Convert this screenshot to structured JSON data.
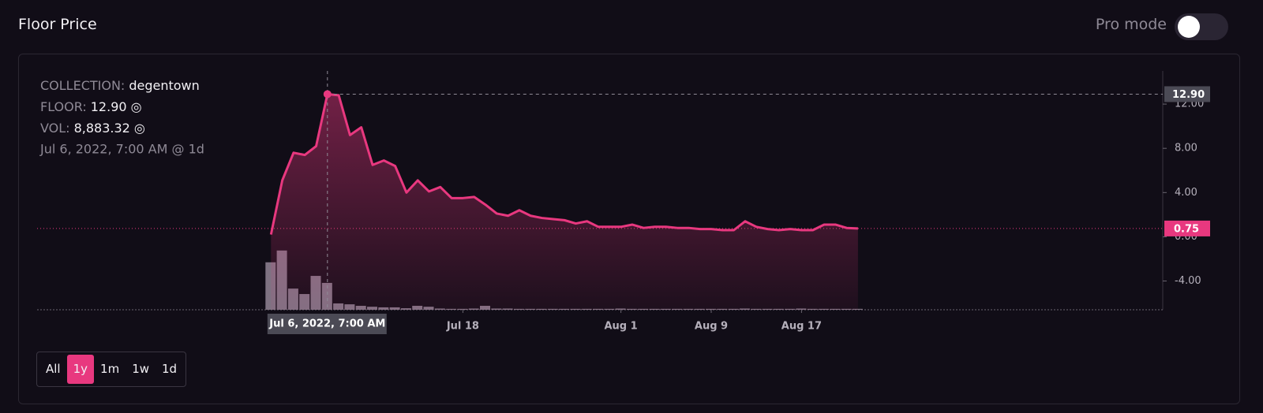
{
  "header": {
    "title": "Floor Price",
    "pro_mode_label": "Pro mode"
  },
  "info": {
    "collection_label": "COLLECTION:",
    "collection": "degentown",
    "floor_label": "FLOOR:",
    "floor": "12.90 ◎",
    "vol_label": "VOL:",
    "vol": "8,883.32 ◎",
    "time": "Jul 6, 2022, 7:00 AM @ 1d"
  },
  "range_buttons": [
    "All",
    "1y",
    "1m",
    "1w",
    "1d"
  ],
  "active_range": "1y",
  "chart_data": {
    "type": "line",
    "x": [
      "2022-07-01",
      "2022-07-02",
      "2022-07-03",
      "2022-07-04",
      "2022-07-05",
      "2022-07-06",
      "2022-07-07",
      "2022-07-08",
      "2022-07-09",
      "2022-07-10",
      "2022-07-11",
      "2022-07-12",
      "2022-07-13",
      "2022-07-14",
      "2022-07-15",
      "2022-07-16",
      "2022-07-17",
      "2022-07-18",
      "2022-07-19",
      "2022-07-20",
      "2022-07-21",
      "2022-07-22",
      "2022-07-23",
      "2022-07-24",
      "2022-07-25",
      "2022-07-26",
      "2022-07-27",
      "2022-07-28",
      "2022-07-29",
      "2022-07-30",
      "2022-07-31",
      "2022-08-01",
      "2022-08-02",
      "2022-08-03",
      "2022-08-04",
      "2022-08-05",
      "2022-08-06",
      "2022-08-07",
      "2022-08-08",
      "2022-08-09",
      "2022-08-10",
      "2022-08-11",
      "2022-08-12",
      "2022-08-13",
      "2022-08-14",
      "2022-08-15",
      "2022-08-16",
      "2022-08-17",
      "2022-08-18",
      "2022-08-19",
      "2022-08-20",
      "2022-08-21",
      "2022-08-22"
    ],
    "series": [
      {
        "color": "#e8387f",
        "values": [
          0.2,
          5.1,
          7.6,
          7.4,
          8.2,
          12.9,
          12.8,
          9.2,
          9.9,
          6.5,
          6.9,
          6.4,
          4.0,
          5.1,
          4.1,
          4.5,
          3.5,
          3.5,
          3.6,
          2.9,
          2.1,
          1.9,
          2.4,
          1.9,
          1.7,
          1.6,
          1.5,
          1.2,
          1.4,
          0.9,
          0.9,
          0.9,
          1.1,
          0.8,
          0.9,
          0.9,
          0.8,
          0.8,
          0.7,
          0.7,
          0.6,
          0.6,
          1.4,
          0.9,
          0.7,
          0.6,
          0.7,
          0.6,
          0.6,
          1.1,
          1.1,
          0.8,
          0.75
        ]
      },
      {
        "type": "bar",
        "axis": "y2",
        "color": "#8b7d8e",
        "values": [
          15700,
          19600,
          7000,
          5200,
          11200,
          8883.32,
          2100,
          1800,
          1300,
          1000,
          800,
          800,
          500,
          1300,
          1000,
          400,
          300,
          300,
          400,
          1300,
          400,
          400,
          300,
          300,
          300,
          300,
          300,
          300,
          300,
          300,
          300,
          400,
          300,
          300,
          300,
          300,
          300,
          300,
          300,
          300,
          300,
          300,
          400,
          300,
          300,
          300,
          300,
          400,
          300,
          300,
          300,
          300,
          300
        ]
      }
    ],
    "xlim": [
      "2022-06-10",
      "2022-09-18"
    ],
    "xticks": [
      {
        "value": "2022-07-18",
        "label": "Jul 18"
      },
      {
        "value": "2022-08-01",
        "label": "Aug 1"
      },
      {
        "value": "2022-08-09",
        "label": "Aug 9"
      },
      {
        "value": "2022-08-17",
        "label": "Aug 17"
      }
    ],
    "ylim": [
      -6.6,
      15
    ],
    "yticks": [
      {
        "value": -4,
        "label": "-4.00"
      },
      {
        "value": 0,
        "label": "0.00"
      },
      {
        "value": 4,
        "label": "4.00"
      },
      {
        "value": 8,
        "label": "8.00"
      },
      {
        "value": 12,
        "label": "12.00"
      }
    ],
    "y2lim": [
      0,
      79000
    ],
    "crosshair_label": "12.90",
    "crosshair_time": "Jul 6, 2022, 7:00 AM",
    "last_price_label": "0.75"
  }
}
